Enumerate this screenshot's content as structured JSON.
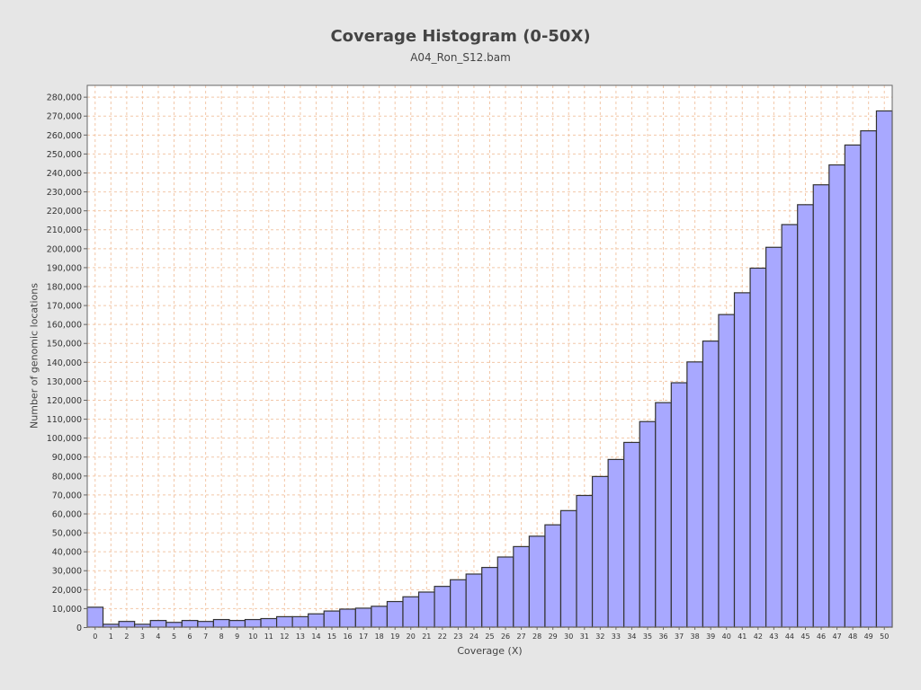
{
  "chart_data": {
    "type": "bar",
    "title": "Coverage Histogram (0-50X)",
    "subtitle": "A04_Ron_S12.bam",
    "xlabel": "Coverage (X)",
    "ylabel": "Number of genomic locations",
    "categories": [
      "0",
      "1",
      "2",
      "3",
      "4",
      "5",
      "6",
      "7",
      "8",
      "9",
      "10",
      "11",
      "12",
      "13",
      "14",
      "15",
      "16",
      "17",
      "18",
      "19",
      "20",
      "21",
      "22",
      "23",
      "24",
      "25",
      "26",
      "27",
      "28",
      "29",
      "30",
      "31",
      "32",
      "33",
      "34",
      "35",
      "36",
      "37",
      "38",
      "39",
      "40",
      "41",
      "42",
      "43",
      "44",
      "45",
      "46",
      "47",
      "48",
      "49",
      "50"
    ],
    "values": [
      10500,
      1500,
      3000,
      1500,
      3500,
      2500,
      3500,
      3000,
      4000,
      3500,
      4000,
      4500,
      5500,
      5500,
      7000,
      8500,
      9500,
      10000,
      11000,
      13500,
      16000,
      18500,
      21500,
      25000,
      28000,
      31500,
      37000,
      42500,
      48000,
      54000,
      61500,
      69500,
      79500,
      88500,
      97500,
      108500,
      118500,
      129000,
      140000,
      151000,
      165000,
      176500,
      189500,
      200500,
      212500,
      223000,
      233500,
      244000,
      254500,
      262000,
      272500
    ],
    "ylim": [
      0,
      286000
    ],
    "yticks": [
      0,
      10000,
      20000,
      30000,
      40000,
      50000,
      60000,
      70000,
      80000,
      90000,
      100000,
      110000,
      120000,
      130000,
      140000,
      150000,
      160000,
      170000,
      180000,
      190000,
      200000,
      210000,
      220000,
      230000,
      240000,
      250000,
      260000,
      270000,
      280000
    ],
    "grid": true,
    "colors": {
      "bar_fill": "#a8a8ff",
      "bar_stroke": "#333333",
      "grid": "#f2c7a8",
      "plot_bg": "#ffffff",
      "background": "#e6e6e6",
      "text": "#444444"
    }
  }
}
